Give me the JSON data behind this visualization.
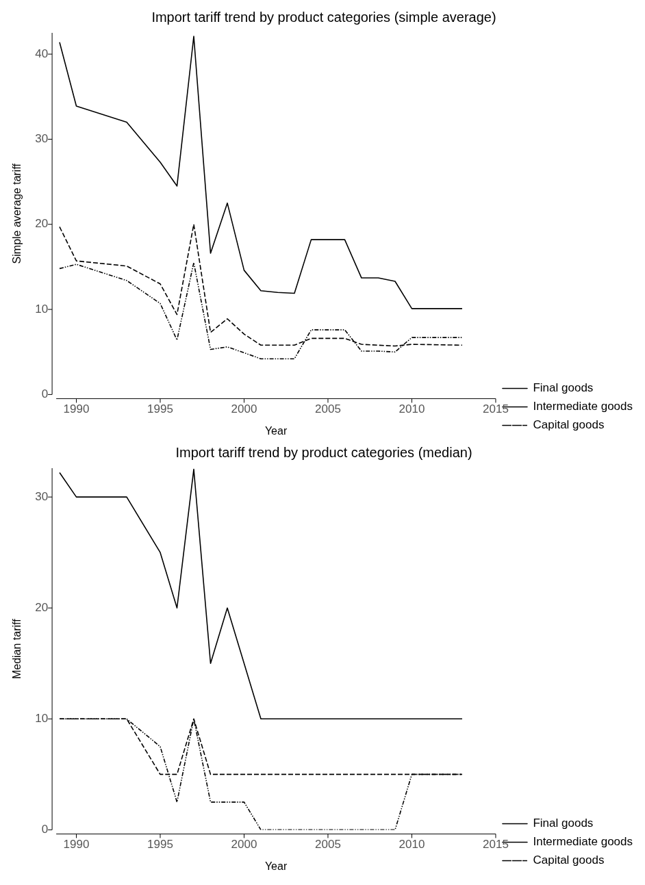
{
  "chart_data": [
    {
      "type": "line",
      "title": "Import tariff trend by product categories (simple average)",
      "xlabel": "Year",
      "ylabel": "Simple average tariff",
      "x": [
        1989,
        1990,
        1993,
        1995,
        1996,
        1997,
        1998,
        1999,
        2000,
        2001,
        2002,
        2003,
        2004,
        2006,
        2007,
        2008,
        2009,
        2010,
        2013
      ],
      "series": [
        {
          "name": "Final goods",
          "color": "#000000",
          "line_style": "solid",
          "values": [
            41.4,
            33.9,
            32.0,
            27.3,
            24.5,
            42.1,
            16.6,
            22.5,
            14.6,
            12.2,
            12.0,
            11.9,
            18.2,
            18.2,
            13.7,
            13.7,
            13.3,
            10.1,
            10.1
          ]
        },
        {
          "name": "Intermediate goods",
          "color": "#000000",
          "line_style": "dashed",
          "values": [
            19.7,
            15.7,
            15.1,
            13.0,
            9.4,
            20.0,
            7.3,
            8.9,
            7.1,
            5.8,
            5.8,
            5.8,
            6.6,
            6.6,
            5.9,
            5.8,
            5.7,
            5.9,
            5.8
          ]
        },
        {
          "name": "Capital goods",
          "color": "#000000",
          "line_style": "dotted",
          "values": [
            14.8,
            15.3,
            13.4,
            10.7,
            6.4,
            15.5,
            5.3,
            5.6,
            4.9,
            4.2,
            4.2,
            4.2,
            7.6,
            7.6,
            5.1,
            5.1,
            5.0,
            6.7,
            6.7
          ]
        }
      ],
      "xlim": [
        1988.8,
        2015
      ],
      "xticks": [
        1990,
        1995,
        2000,
        2005,
        2010,
        2015
      ],
      "ylim": [
        0,
        42.5
      ],
      "yticks": [
        0,
        10,
        20,
        30,
        40
      ],
      "grid": false,
      "legend": "bottom right",
      "marker": "none"
    },
    {
      "type": "line",
      "title": "Import tariff trend by product categories (median)",
      "xlabel": "Year",
      "ylabel": "Median tariff",
      "x": [
        1989,
        1990,
        1993,
        1995,
        1996,
        1997,
        1998,
        1999,
        2000,
        2001,
        2002,
        2003,
        2004,
        2006,
        2007,
        2008,
        2009,
        2010,
        2013
      ],
      "series": [
        {
          "name": "Final goods",
          "color": "#000000",
          "line_style": "solid",
          "values": [
            32.2,
            30,
            30,
            25,
            20,
            32.5,
            15,
            20,
            15,
            10,
            10,
            10,
            10,
            10,
            10,
            10,
            10,
            10,
            10
          ]
        },
        {
          "name": "Intermediate goods",
          "color": "#000000",
          "line_style": "dashed",
          "values": [
            10,
            10,
            10,
            5,
            5,
            10,
            5,
            5,
            5,
            5,
            5,
            5,
            5,
            5,
            5,
            5,
            5,
            5,
            5
          ]
        },
        {
          "name": "Capital goods",
          "color": "#000000",
          "line_style": "dotted",
          "values": [
            10,
            10,
            10,
            7.5,
            2.5,
            10,
            2.5,
            2.5,
            2.5,
            0,
            0,
            0,
            0,
            0,
            0,
            0,
            0,
            5,
            5
          ]
        }
      ],
      "xlim": [
        1988.8,
        2015
      ],
      "xticks": [
        1990,
        1995,
        2000,
        2005,
        2010,
        2015
      ],
      "ylim": [
        0,
        32.6
      ],
      "yticks": [
        0,
        10,
        20,
        30
      ],
      "grid": false,
      "legend": "bottom right",
      "marker": "none"
    }
  ]
}
